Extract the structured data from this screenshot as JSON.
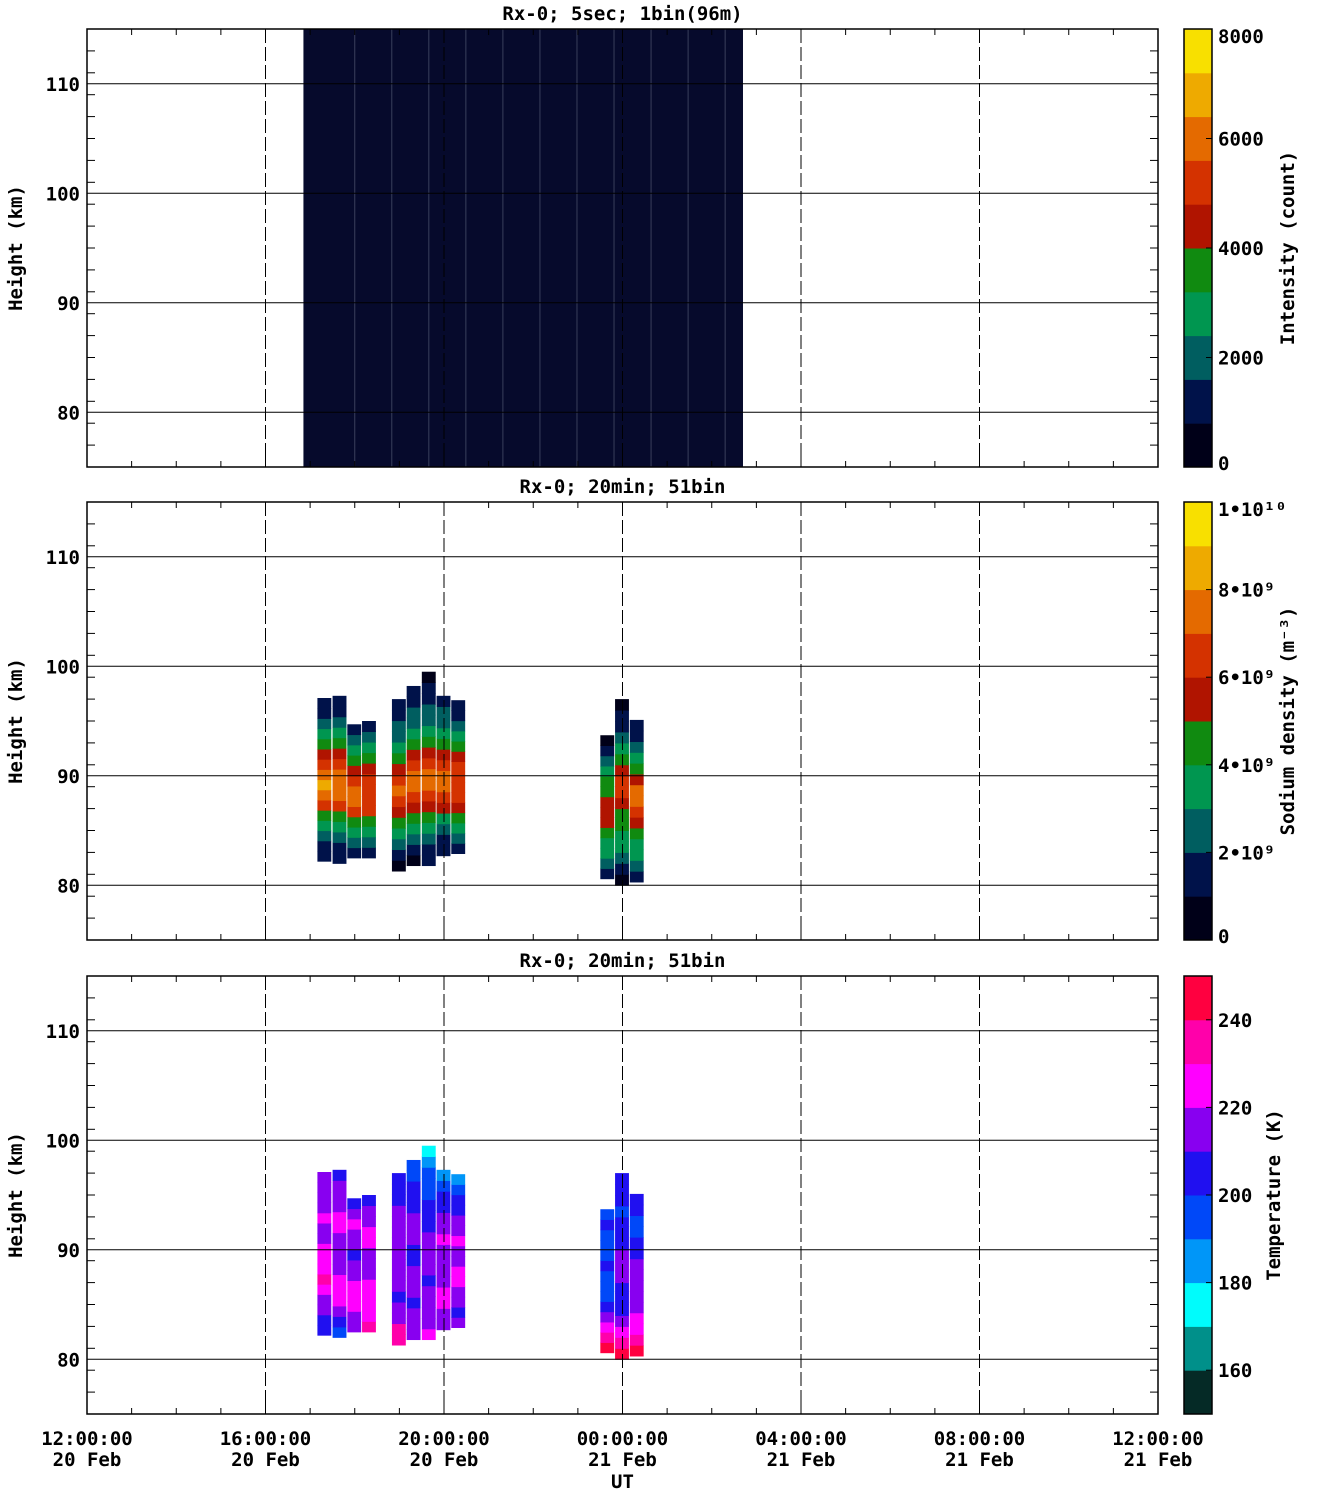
{
  "x_ticks": [
    {
      "time": "12:00:00",
      "date": "20 Feb"
    },
    {
      "time": "16:00:00",
      "date": "20 Feb"
    },
    {
      "time": "20:00:00",
      "date": "20 Feb"
    },
    {
      "time": "00:00:00",
      "date": "21 Feb"
    },
    {
      "time": "04:00:00",
      "date": "21 Feb"
    },
    {
      "time": "08:00:00",
      "date": "21 Feb"
    },
    {
      "time": "12:00:00",
      "date": "21 Feb"
    }
  ],
  "xlabel": "UT",
  "chart_data": [
    {
      "type": "heatmap",
      "title": "Rx-0;  5sec; 1bin(96m)",
      "xlim_hours_since_20Feb_00UT": [
        12,
        36
      ],
      "ylabel": "Height (km)",
      "ylim": [
        75,
        115
      ],
      "yticks": [
        80,
        90,
        100,
        110
      ],
      "grid": true,
      "colorbar": {
        "label": "Intensity (count)",
        "range": [
          0,
          8000
        ],
        "ticks": [
          0,
          2000,
          4000,
          6000,
          8000
        ],
        "tick_labels": [
          "0",
          "2000",
          "4000",
          "6000",
          "8000"
        ],
        "colors": [
          "#000018",
          "#00124a",
          "#005e60",
          "#009650",
          "#108a10",
          "#b01400",
          "#d43200",
          "#e46a00",
          "#eeaa00",
          "#f8e000"
        ]
      },
      "blocks": [
        {
          "t_start": 16.85,
          "t_end": 26.7,
          "h_min": 75,
          "h_max": 115,
          "value": 300,
          "note_color": "#060a2c"
        }
      ]
    },
    {
      "type": "heatmap",
      "title": "Rx-0; 20min; 51bin",
      "ylabel": "Height (km)",
      "ylim": [
        75,
        115
      ],
      "yticks": [
        80,
        90,
        100,
        110
      ],
      "grid": true,
      "colorbar": {
        "label": "Sodium density (m⁻³)",
        "range": [
          0,
          10000000000
        ],
        "ticks": [
          0,
          2000000000,
          4000000000,
          6000000000,
          8000000000,
          10000000000
        ],
        "tick_labels": [
          "0",
          "2•10⁹",
          "4•10⁹",
          "6•10⁹",
          "8•10⁹",
          "1•10¹⁰"
        ],
        "colors": [
          "#000018",
          "#00124a",
          "#005e60",
          "#009650",
          "#108a10",
          "#b01400",
          "#d43200",
          "#e46a00",
          "#eeaa00",
          "#f8e000"
        ]
      },
      "profiles": [
        {
          "t": 17.33,
          "h_min": 82.2,
          "h_max": 97.1,
          "values": [
            1.0,
            1.5,
            2.5,
            3.5,
            4.5,
            6.5,
            7.5,
            8.0,
            7.5,
            6.5,
            5.5,
            4.5,
            3.5,
            2.5,
            1.5,
            1.0
          ]
        },
        {
          "t": 17.67,
          "h_min": 82.0,
          "h_max": 97.3,
          "values": [
            1.0,
            1.5,
            2.5,
            3.5,
            4.5,
            6.0,
            7.0,
            7.5,
            7.0,
            6.0,
            5.0,
            4.0,
            3.0,
            2.5,
            1.5,
            1.0
          ]
        },
        {
          "t": 18.0,
          "h_min": 82.5,
          "h_max": 94.7,
          "values": [
            1.0,
            2.0,
            3.0,
            4.5,
            6.0,
            7.0,
            7.0,
            6.0,
            5.0,
            4.0,
            3.0,
            2.0,
            1.0
          ]
        },
        {
          "t": 18.33,
          "h_min": 82.5,
          "h_max": 95.0,
          "values": [
            1.0,
            2.0,
            3.0,
            4.5,
            6.0,
            6.5,
            6.5,
            6.0,
            5.0,
            4.0,
            3.0,
            2.0,
            1.0
          ]
        },
        {
          "t": 19.0,
          "h_min": 81.3,
          "h_max": 97.0,
          "values": [
            0.8,
            1.5,
            2.5,
            3.5,
            4.5,
            5.5,
            6.5,
            7.0,
            6.5,
            5.0,
            4.0,
            3.0,
            2.5,
            2.0,
            1.5,
            1.0
          ]
        },
        {
          "t": 19.33,
          "h_min": 81.8,
          "h_max": 98.2,
          "values": [
            0.8,
            1.5,
            2.5,
            3.5,
            4.5,
            5.5,
            6.5,
            7.0,
            7.0,
            6.0,
            5.0,
            4.0,
            3.0,
            2.5,
            2.0,
            1.5,
            1.0
          ]
        },
        {
          "t": 19.67,
          "h_min": 81.8,
          "h_max": 99.5,
          "values": [
            1.0,
            1.5,
            2.5,
            3.5,
            4.5,
            5.5,
            6.5,
            7.0,
            7.0,
            6.0,
            5.0,
            4.0,
            3.0,
            2.5,
            2.0,
            1.5,
            1.0,
            0.8
          ]
        },
        {
          "t": 20.0,
          "h_min": 82.7,
          "h_max": 97.3,
          "values": [
            1.0,
            1.5,
            2.5,
            3.5,
            5.0,
            6.0,
            7.0,
            7.0,
            6.5,
            5.5,
            4.5,
            3.5,
            2.5,
            2.0,
            1.5
          ]
        },
        {
          "t": 20.33,
          "h_min": 82.9,
          "h_max": 96.9,
          "values": [
            1.0,
            2.0,
            3.0,
            4.0,
            5.0,
            6.0,
            6.5,
            6.5,
            6.0,
            5.0,
            4.0,
            3.0,
            2.5,
            1.5,
            1.0
          ]
        },
        {
          "t": 23.67,
          "h_min": 80.6,
          "h_max": 93.7,
          "values": [
            1.0,
            2.0,
            3.0,
            3.5,
            4.0,
            5.0,
            5.5,
            5.0,
            4.5,
            4.0,
            3.0,
            2.0,
            1.0,
            0.8
          ]
        },
        {
          "t": 24.0,
          "h_min": 80.0,
          "h_max": 97.0,
          "values": [
            0.8,
            1.5,
            2.5,
            3.0,
            3.5,
            4.0,
            4.5,
            5.5,
            6.5,
            6.0,
            5.0,
            4.0,
            3.0,
            2.0,
            1.5,
            1.0,
            0.8
          ]
        },
        {
          "t": 24.33,
          "h_min": 80.3,
          "h_max": 95.1,
          "values": [
            1.0,
            2.0,
            3.0,
            3.5,
            4.0,
            5.0,
            6.5,
            7.5,
            7.0,
            5.5,
            4.0,
            3.0,
            2.0,
            1.5,
            1.0
          ]
        }
      ]
    },
    {
      "type": "heatmap",
      "title": "Rx-0; 20min; 51bin",
      "ylabel": "Height (km)",
      "ylim": [
        75,
        115
      ],
      "yticks": [
        80,
        90,
        100,
        110
      ],
      "grid": true,
      "colorbar": {
        "label": "Temperature (K)",
        "range": [
          150,
          250
        ],
        "ticks": [
          160,
          180,
          200,
          220,
          240
        ],
        "tick_labels": [
          "160",
          "180",
          "200",
          "220",
          "240"
        ],
        "colors": [
          "#052a26",
          "#00908a",
          "#00fcfc",
          "#0096f8",
          "#0048f8",
          "#2010f0",
          "#8800f0",
          "#ff00ff",
          "#ff00aa",
          "#ff0040"
        ]
      },
      "profiles": [
        {
          "t": 17.33,
          "h_min": 82.2,
          "h_max": 97.1,
          "values": [
            205,
            200,
            212,
            215,
            222,
            230,
            225,
            228,
            220,
            214,
            217,
            222,
            215,
            212,
            210,
            215
          ]
        },
        {
          "t": 17.67,
          "h_min": 82.0,
          "h_max": 97.3,
          "values": [
            190,
            200,
            212,
            222,
            225,
            222,
            218,
            215,
            212,
            218,
            224,
            220,
            214,
            210,
            215,
            205
          ]
        },
        {
          "t": 18.0,
          "h_min": 82.5,
          "h_max": 94.7,
          "values": [
            210,
            215,
            222,
            226,
            220,
            214,
            210,
            205,
            212,
            216,
            220,
            214,
            208
          ]
        },
        {
          "t": 18.33,
          "h_min": 82.5,
          "h_max": 95.0,
          "values": [
            230,
            228,
            225,
            222,
            220,
            218,
            214,
            216,
            220,
            222,
            218,
            212,
            205
          ]
        },
        {
          "t": 19.0,
          "h_min": 81.3,
          "h_max": 97.0,
          "values": [
            232,
            230,
            218,
            212,
            205,
            210,
            214,
            212,
            210,
            212,
            214,
            212,
            210,
            208,
            205,
            200
          ]
        },
        {
          "t": 19.33,
          "h_min": 81.8,
          "h_max": 98.2,
          "values": [
            215,
            212,
            210,
            205,
            210,
            214,
            212,
            208,
            205,
            210,
            214,
            212,
            208,
            205,
            202,
            198,
            192
          ]
        },
        {
          "t": 19.67,
          "h_min": 81.8,
          "h_max": 99.5,
          "values": [
            220,
            218,
            216,
            214,
            212,
            208,
            210,
            212,
            214,
            210,
            208,
            205,
            200,
            198,
            195,
            190,
            182,
            178
          ]
        },
        {
          "t": 20.0,
          "h_min": 82.7,
          "h_max": 97.3,
          "values": [
            215,
            218,
            220,
            222,
            218,
            216,
            214,
            218,
            220,
            216,
            212,
            205,
            200,
            192,
            188
          ]
        },
        {
          "t": 20.33,
          "h_min": 82.9,
          "h_max": 96.9,
          "values": [
            212,
            208,
            214,
            218,
            220,
            222,
            218,
            216,
            220,
            218,
            214,
            208,
            200,
            192,
            188
          ]
        },
        {
          "t": 23.67,
          "h_min": 80.6,
          "h_max": 93.7,
          "values": [
            240,
            232,
            226,
            214,
            205,
            196,
            190,
            196,
            200,
            196,
            192,
            196,
            200,
            198
          ]
        },
        {
          "t": 24.0,
          "h_min": 80.0,
          "h_max": 97.0,
          "values": [
            250,
            238,
            228,
            218,
            208,
            200,
            205,
            212,
            218,
            214,
            208,
            204,
            200,
            198,
            205,
            200,
            208
          ]
        },
        {
          "t": 24.33,
          "h_min": 80.3,
          "h_max": 95.1,
          "values": [
            248,
            238,
            226,
            222,
            218,
            214,
            216,
            214,
            210,
            205,
            200,
            198,
            196,
            200,
            205
          ]
        }
      ]
    }
  ]
}
